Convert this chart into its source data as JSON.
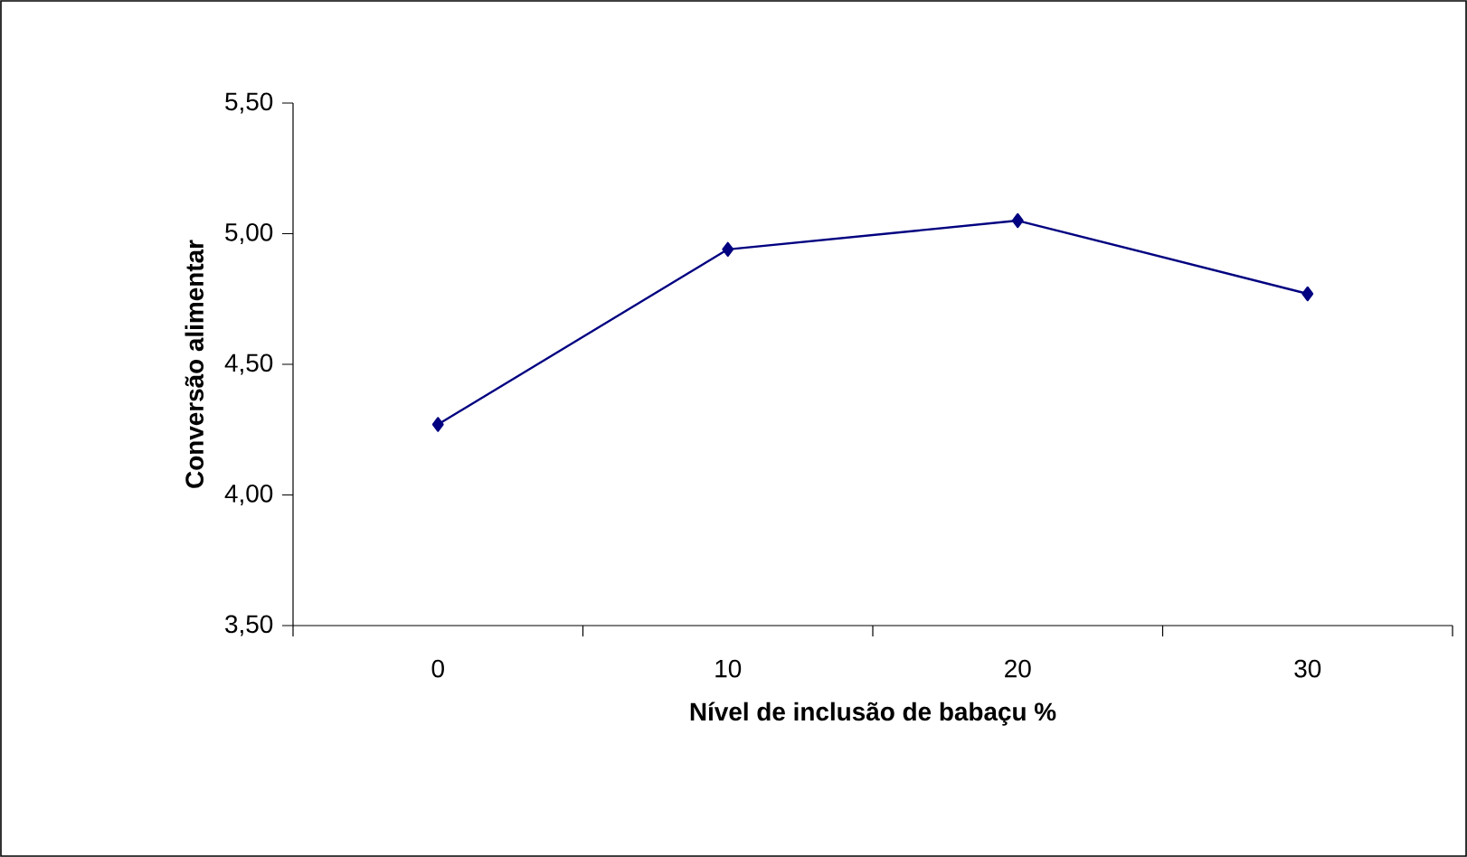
{
  "chart_data": {
    "type": "line",
    "xlabel": "Nível de inclusão de babaçu %",
    "ylabel": "Conversão alimentar",
    "categories": [
      "0",
      "10",
      "20",
      "30"
    ],
    "series": [
      {
        "color": "#000080",
        "values": [
          4.27,
          4.94,
          5.05,
          4.77
        ]
      }
    ],
    "marker": "diamond",
    "line_style": "solid",
    "ylim": [
      3.5,
      5.5
    ],
    "yticks": [
      {
        "value": 3.5,
        "label": "3,50"
      },
      {
        "value": 4.0,
        "label": "4,00"
      },
      {
        "value": 4.5,
        "label": "4,50"
      },
      {
        "value": 5.0,
        "label": "5,00"
      },
      {
        "value": 5.5,
        "label": "5,50"
      }
    ]
  }
}
